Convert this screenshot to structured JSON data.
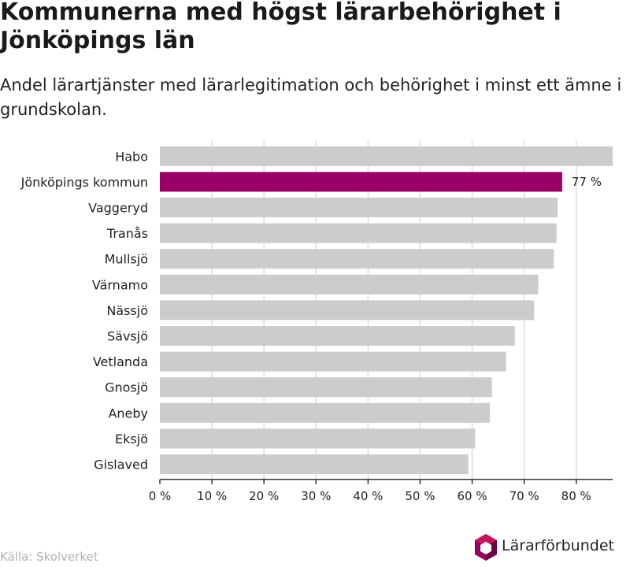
{
  "title": "Kommunerna med högst lärarbehörighet i Jönköpings län",
  "subtitle": "Andel lärartjänster med lärarlegitimation och behörighet i minst ett ämne i grundskolan.",
  "source": "Källa: Skolverket",
  "logo_text": "Lärarförbundet",
  "colors": {
    "highlight": "#990066",
    "bar": "#cccccc",
    "grid": "#dddddd",
    "axis": "#333333"
  },
  "chart_data": {
    "type": "bar",
    "orientation": "horizontal",
    "categories": [
      "Habo",
      "Jönköpings kommun",
      "Vaggeryd",
      "Tranås",
      "Mullsjö",
      "Värnamo",
      "Nässjö",
      "Sävsjö",
      "Vetlanda",
      "Gnosjö",
      "Aneby",
      "Eksjö",
      "Gislaved"
    ],
    "values": [
      87,
      77.3,
      76.4,
      76.2,
      75.7,
      72.7,
      71.9,
      68.2,
      66.5,
      63.8,
      63.4,
      60.6,
      59.3
    ],
    "highlight": "Jönköpings kommun",
    "data_labels": [
      {
        "category": "Jönköpings kommun",
        "text": "77 %"
      }
    ],
    "xlim": [
      0,
      87
    ],
    "xticks": [
      0,
      10,
      20,
      30,
      40,
      50,
      60,
      70,
      80
    ],
    "xtick_labels": [
      "0 %",
      "10 %",
      "20 %",
      "30 %",
      "40 %",
      "50 %",
      "60 %",
      "70 %",
      "80 %"
    ],
    "grid": true,
    "xlabel": "",
    "ylabel": ""
  }
}
